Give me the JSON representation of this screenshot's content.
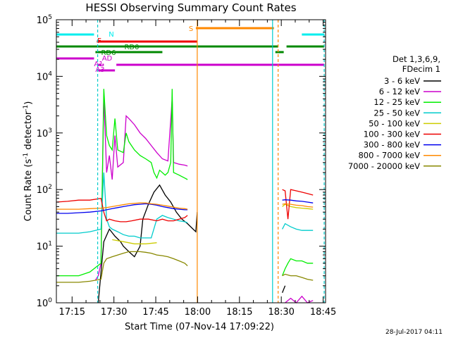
{
  "chart_data": {
    "type": "line",
    "title": "HESSI Observing Summary Count Rates",
    "xlabel": "Start Time (07-Nov-14 17:09:22)",
    "ylabel_main": "Count Rate (s",
    "ylabel_exp": "-1",
    "ylabel_mid": " detector",
    "ylabel_end": ")",
    "yscale": "log",
    "ylim": [
      1,
      100000
    ],
    "y_ticks": [
      {
        "base": "10",
        "exp": "0",
        "value": 1
      },
      {
        "base": "10",
        "exp": "1",
        "value": 10
      },
      {
        "base": "10",
        "exp": "2",
        "value": 100
      },
      {
        "base": "10",
        "exp": "3",
        "value": 1000
      },
      {
        "base": "10",
        "exp": "4",
        "value": 10000
      },
      {
        "base": "10",
        "exp": "5",
        "value": 100000
      }
    ],
    "xlim_minutes": [
      0,
      96.5
    ],
    "x_ticks": [
      {
        "label": "17:15",
        "min": 5.63
      },
      {
        "label": "17:30",
        "min": 20.63
      },
      {
        "label": "17:45",
        "min": 35.63
      },
      {
        "label": "18:00",
        "min": 50.63
      },
      {
        "label": "18:15",
        "min": 65.63
      },
      {
        "label": "18:30",
        "min": 80.63
      },
      {
        "label": "18:45",
        "min": 95.63
      }
    ],
    "legend_title": [
      "Det 1,3,6,9,",
      "FDecim 1"
    ],
    "legend_placement": "right",
    "series": [
      {
        "name": "3 - 6 keV",
        "color": "#000000",
        "values": [
          [
            0,
            null
          ],
          [
            14,
            null
          ],
          [
            15,
            1.0
          ],
          [
            17,
            12
          ],
          [
            19,
            20
          ],
          [
            21,
            15
          ],
          [
            23,
            12
          ],
          [
            24,
            10
          ],
          [
            26,
            8
          ],
          [
            28,
            6.5
          ],
          [
            30,
            10
          ],
          [
            31,
            30
          ],
          [
            33,
            55
          ],
          [
            35,
            90
          ],
          [
            37,
            120
          ],
          [
            39,
            80
          ],
          [
            41,
            60
          ],
          [
            43,
            40
          ],
          [
            45,
            30
          ],
          [
            47,
            25
          ],
          [
            49,
            20
          ],
          [
            50,
            18
          ],
          [
            50.5,
            40
          ],
          [
            51,
            null
          ],
          [
            80,
            null
          ],
          [
            81,
            1.5
          ],
          [
            82,
            2
          ],
          [
            83,
            null
          ]
        ]
      },
      {
        "name": "6 - 12 keV",
        "color": "#cc00cc",
        "values": [
          [
            14,
            2.5
          ],
          [
            15,
            3
          ],
          [
            16,
            5
          ],
          [
            17,
            4500
          ],
          [
            18,
            200
          ],
          [
            19,
            400
          ],
          [
            20,
            150
          ],
          [
            21,
            900
          ],
          [
            22,
            250
          ],
          [
            24,
            300
          ],
          [
            25,
            2000
          ],
          [
            26,
            1800
          ],
          [
            28,
            1400
          ],
          [
            30,
            1000
          ],
          [
            32,
            800
          ],
          [
            34,
            600
          ],
          [
            36,
            450
          ],
          [
            38,
            350
          ],
          [
            40,
            320
          ],
          [
            41.5,
            4000
          ],
          [
            42,
            300
          ],
          [
            44,
            280
          ],
          [
            46,
            270
          ],
          [
            47,
            260
          ],
          [
            47.5,
            null
          ],
          [
            80,
            null
          ],
          [
            82,
            1
          ],
          [
            84,
            1.2
          ],
          [
            86,
            1
          ],
          [
            88,
            1.3
          ],
          [
            90,
            1
          ],
          [
            92,
            1.1
          ],
          [
            93,
            null
          ]
        ]
      },
      {
        "name": "12 - 25 keV",
        "color": "#00ee00",
        "values": [
          [
            0,
            3
          ],
          [
            4,
            3
          ],
          [
            8,
            3
          ],
          [
            12,
            3.5
          ],
          [
            16,
            5
          ],
          [
            17,
            6000
          ],
          [
            18,
            900
          ],
          [
            19,
            600
          ],
          [
            20,
            500
          ],
          [
            21,
            1800
          ],
          [
            22,
            500
          ],
          [
            24,
            450
          ],
          [
            25,
            1000
          ],
          [
            26,
            700
          ],
          [
            28,
            500
          ],
          [
            30,
            400
          ],
          [
            32,
            350
          ],
          [
            34,
            300
          ],
          [
            35,
            200
          ],
          [
            36,
            160
          ],
          [
            37,
            220
          ],
          [
            39,
            180
          ],
          [
            40,
            200
          ],
          [
            41,
            300
          ],
          [
            41.5,
            6000
          ],
          [
            42,
            200
          ],
          [
            44,
            180
          ],
          [
            46,
            160
          ],
          [
            47,
            150
          ],
          [
            47.5,
            null
          ],
          [
            80,
            null
          ],
          [
            81,
            3
          ],
          [
            82,
            4
          ],
          [
            83,
            5
          ],
          [
            84,
            6
          ],
          [
            86,
            5.5
          ],
          [
            88,
            5.5
          ],
          [
            90,
            5
          ],
          [
            92,
            5
          ],
          [
            93,
            null
          ]
        ]
      },
      {
        "name": "25 - 50 keV",
        "color": "#00cccc",
        "values": [
          [
            0,
            17
          ],
          [
            4,
            17
          ],
          [
            8,
            17
          ],
          [
            12,
            18
          ],
          [
            16,
            20
          ],
          [
            17,
            200
          ],
          [
            18,
            30
          ],
          [
            19,
            22
          ],
          [
            20,
            20
          ],
          [
            22,
            18
          ],
          [
            24,
            16
          ],
          [
            26,
            15
          ],
          [
            28,
            15
          ],
          [
            30,
            14
          ],
          [
            32,
            14
          ],
          [
            34,
            14
          ],
          [
            36,
            30
          ],
          [
            38,
            35
          ],
          [
            40,
            32
          ],
          [
            42,
            30
          ],
          [
            44,
            28
          ],
          [
            46,
            27
          ],
          [
            47,
            26
          ],
          [
            47.5,
            null
          ],
          [
            80,
            null
          ],
          [
            81,
            20
          ],
          [
            82,
            25
          ],
          [
            84,
            22
          ],
          [
            86,
            20
          ],
          [
            88,
            19
          ],
          [
            90,
            19
          ],
          [
            92,
            19
          ],
          [
            93,
            null
          ]
        ]
      },
      {
        "name": "50 - 100 keV",
        "color": "#cccc00",
        "values": [
          [
            19,
            null
          ],
          [
            20,
            13
          ],
          [
            24,
            12
          ],
          [
            28,
            11
          ],
          [
            32,
            11
          ],
          [
            36,
            11.5
          ],
          [
            37,
            null
          ],
          [
            80,
            null
          ],
          [
            81,
            50
          ],
          [
            82,
            55
          ],
          [
            84,
            50
          ],
          [
            86,
            48
          ],
          [
            88,
            47
          ],
          [
            90,
            46
          ],
          [
            92,
            45
          ],
          [
            93,
            null
          ]
        ]
      },
      {
        "name": "100 - 300 keV",
        "color": "#ee0000",
        "values": [
          [
            0,
            60
          ],
          [
            4,
            62
          ],
          [
            8,
            65
          ],
          [
            12,
            65
          ],
          [
            16,
            70
          ],
          [
            17,
            40
          ],
          [
            18,
            28
          ],
          [
            19,
            30
          ],
          [
            21,
            28
          ],
          [
            23,
            27
          ],
          [
            25,
            27
          ],
          [
            27,
            28
          ],
          [
            30,
            30
          ],
          [
            33,
            30
          ],
          [
            36,
            28
          ],
          [
            38,
            30
          ],
          [
            40,
            28
          ],
          [
            42,
            28
          ],
          [
            44,
            30
          ],
          [
            46,
            32
          ],
          [
            47,
            35
          ],
          [
            47.5,
            null
          ],
          [
            80,
            null
          ],
          [
            81,
            100
          ],
          [
            82,
            95
          ],
          [
            83,
            30
          ],
          [
            84,
            100
          ],
          [
            86,
            95
          ],
          [
            88,
            90
          ],
          [
            90,
            85
          ],
          [
            92,
            80
          ],
          [
            93,
            null
          ]
        ]
      },
      {
        "name": "300 - 800 keV",
        "color": "#0000ee",
        "values": [
          [
            0,
            38
          ],
          [
            4,
            38
          ],
          [
            8,
            39
          ],
          [
            12,
            40
          ],
          [
            16,
            42
          ],
          [
            18,
            44
          ],
          [
            20,
            46
          ],
          [
            22,
            48
          ],
          [
            24,
            50
          ],
          [
            26,
            52
          ],
          [
            28,
            54
          ],
          [
            30,
            55
          ],
          [
            32,
            56
          ],
          [
            34,
            55
          ],
          [
            36,
            53
          ],
          [
            38,
            50
          ],
          [
            40,
            48
          ],
          [
            42,
            46
          ],
          [
            44,
            45
          ],
          [
            46,
            44
          ],
          [
            47,
            44
          ],
          [
            47.5,
            null
          ],
          [
            80,
            null
          ],
          [
            81,
            65
          ],
          [
            82,
            66
          ],
          [
            84,
            65
          ],
          [
            86,
            63
          ],
          [
            88,
            62
          ],
          [
            90,
            60
          ],
          [
            92,
            58
          ],
          [
            93,
            null
          ]
        ]
      },
      {
        "name": "800 - 7000 keV",
        "color": "#ff8800",
        "values": [
          [
            0,
            45
          ],
          [
            4,
            45
          ],
          [
            8,
            45
          ],
          [
            12,
            46
          ],
          [
            16,
            47
          ],
          [
            18,
            48
          ],
          [
            20,
            50
          ],
          [
            22,
            52
          ],
          [
            24,
            54
          ],
          [
            26,
            56
          ],
          [
            28,
            57
          ],
          [
            30,
            58
          ],
          [
            32,
            58
          ],
          [
            34,
            56
          ],
          [
            36,
            55
          ],
          [
            38,
            53
          ],
          [
            40,
            51
          ],
          [
            42,
            49
          ],
          [
            44,
            47
          ],
          [
            46,
            46
          ],
          [
            47,
            45
          ],
          [
            47.5,
            null
          ],
          [
            80,
            null
          ],
          [
            81,
            55
          ],
          [
            82,
            56
          ],
          [
            84,
            55
          ],
          [
            86,
            53
          ],
          [
            88,
            52
          ],
          [
            90,
            50
          ],
          [
            92,
            49
          ],
          [
            93,
            null
          ]
        ]
      },
      {
        "name": "7000 - 20000 keV",
        "color": "#888800",
        "values": [
          [
            0,
            2.3
          ],
          [
            4,
            2.3
          ],
          [
            8,
            2.3
          ],
          [
            12,
            2.4
          ],
          [
            16,
            2.6
          ],
          [
            17,
            5
          ],
          [
            18,
            6
          ],
          [
            20,
            6.5
          ],
          [
            22,
            7
          ],
          [
            24,
            7.5
          ],
          [
            26,
            8
          ],
          [
            28,
            8
          ],
          [
            30,
            8
          ],
          [
            32,
            7.8
          ],
          [
            34,
            7.5
          ],
          [
            36,
            7
          ],
          [
            38,
            6.8
          ],
          [
            40,
            6.5
          ],
          [
            42,
            6
          ],
          [
            44,
            5.5
          ],
          [
            46,
            5
          ],
          [
            47,
            4.5
          ],
          [
            47.5,
            null
          ],
          [
            80,
            null
          ],
          [
            81,
            3
          ],
          [
            82,
            3.2
          ],
          [
            84,
            3
          ],
          [
            86,
            3
          ],
          [
            88,
            2.8
          ],
          [
            90,
            2.6
          ],
          [
            92,
            2.5
          ],
          [
            93,
            null
          ]
        ]
      }
    ],
    "annotations": {
      "labels": [
        {
          "text": "S",
          "color": "#ff8800"
        },
        {
          "text": "N",
          "color": "#00eeee"
        },
        {
          "text": "F",
          "color": "#ee0000"
        },
        {
          "text": "RD0",
          "color": "#008800"
        },
        {
          "text": "RD6",
          "color": "#008800"
        },
        {
          "text": "AD",
          "color": "#cc00cc"
        },
        {
          "text": "A1",
          "color": "#cc00cc"
        },
        {
          "text": "A3",
          "color": "#cc00cc"
        }
      ]
    },
    "timestamp": "28-Jul-2017 04:11"
  }
}
